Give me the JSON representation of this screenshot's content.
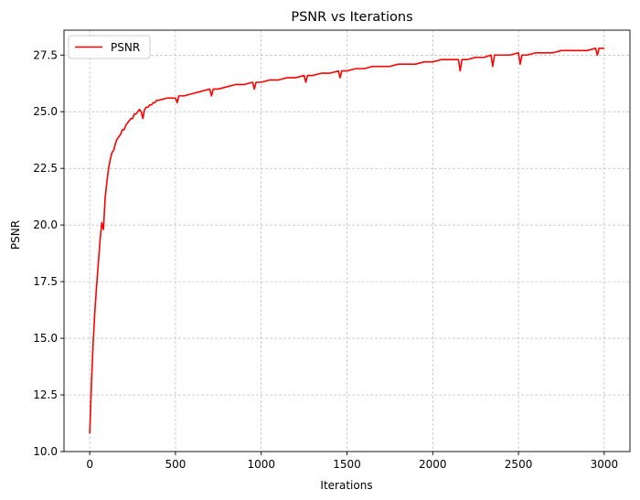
{
  "chart_data": {
    "type": "line",
    "title": "PSNR vs Iterations",
    "xlabel": "Iterations",
    "ylabel": "PSNR",
    "xlim": [
      -150,
      3150
    ],
    "ylim": [
      10.0,
      28.6
    ],
    "xticks": [
      0,
      500,
      1000,
      1500,
      2000,
      2500,
      3000
    ],
    "yticks": [
      10.0,
      12.5,
      15.0,
      17.5,
      20.0,
      22.5,
      25.0,
      27.5
    ],
    "xtick_labels": [
      "0",
      "500",
      "1000",
      "1500",
      "2000",
      "2500",
      "3000"
    ],
    "ytick_labels": [
      "10.0",
      "12.5",
      "15.0",
      "17.5",
      "20.0",
      "22.5",
      "25.0",
      "27.5"
    ],
    "grid": true,
    "legend_position": "top-left",
    "series": [
      {
        "name": "PSNR",
        "color": "#ff0000",
        "x": [
          0,
          10,
          20,
          30,
          40,
          50,
          60,
          70,
          80,
          90,
          100,
          110,
          120,
          130,
          140,
          150,
          160,
          170,
          180,
          190,
          200,
          210,
          220,
          230,
          240,
          250,
          260,
          270,
          280,
          290,
          300,
          310,
          320,
          330,
          340,
          350,
          360,
          370,
          380,
          390,
          400,
          450,
          500,
          510,
          520,
          550,
          600,
          650,
          700,
          710,
          720,
          750,
          800,
          850,
          900,
          950,
          960,
          970,
          1000,
          1050,
          1100,
          1150,
          1200,
          1250,
          1260,
          1270,
          1300,
          1350,
          1400,
          1450,
          1460,
          1470,
          1500,
          1550,
          1600,
          1650,
          1700,
          1750,
          1800,
          1850,
          1900,
          1950,
          2000,
          2050,
          2100,
          2150,
          2160,
          2170,
          2200,
          2250,
          2300,
          2340,
          2350,
          2360,
          2400,
          2450,
          2500,
          2510,
          2520,
          2550,
          2600,
          2650,
          2700,
          2750,
          2800,
          2850,
          2900,
          2950,
          2960,
          2970,
          3000
        ],
        "y": [
          10.8,
          13.0,
          14.8,
          16.2,
          17.3,
          18.3,
          19.3,
          20.1,
          19.8,
          21.2,
          21.9,
          22.5,
          22.9,
          23.2,
          23.3,
          23.6,
          23.8,
          23.9,
          24.0,
          24.2,
          24.2,
          24.4,
          24.5,
          24.6,
          24.7,
          24.7,
          24.9,
          24.9,
          25.0,
          25.1,
          25.0,
          24.7,
          25.1,
          25.2,
          25.2,
          25.3,
          25.3,
          25.4,
          25.4,
          25.5,
          25.5,
          25.6,
          25.6,
          25.4,
          25.7,
          25.7,
          25.8,
          25.9,
          26.0,
          25.7,
          26.0,
          26.0,
          26.1,
          26.2,
          26.2,
          26.3,
          26.0,
          26.3,
          26.3,
          26.4,
          26.4,
          26.5,
          26.5,
          26.6,
          26.3,
          26.6,
          26.6,
          26.7,
          26.7,
          26.8,
          26.5,
          26.8,
          26.8,
          26.9,
          26.9,
          27.0,
          27.0,
          27.0,
          27.1,
          27.1,
          27.1,
          27.2,
          27.2,
          27.3,
          27.3,
          27.3,
          26.8,
          27.3,
          27.3,
          27.4,
          27.4,
          27.5,
          27.0,
          27.5,
          27.5,
          27.5,
          27.6,
          27.1,
          27.5,
          27.5,
          27.6,
          27.6,
          27.6,
          27.7,
          27.7,
          27.7,
          27.7,
          27.8,
          27.5,
          27.8,
          27.8
        ]
      }
    ]
  }
}
